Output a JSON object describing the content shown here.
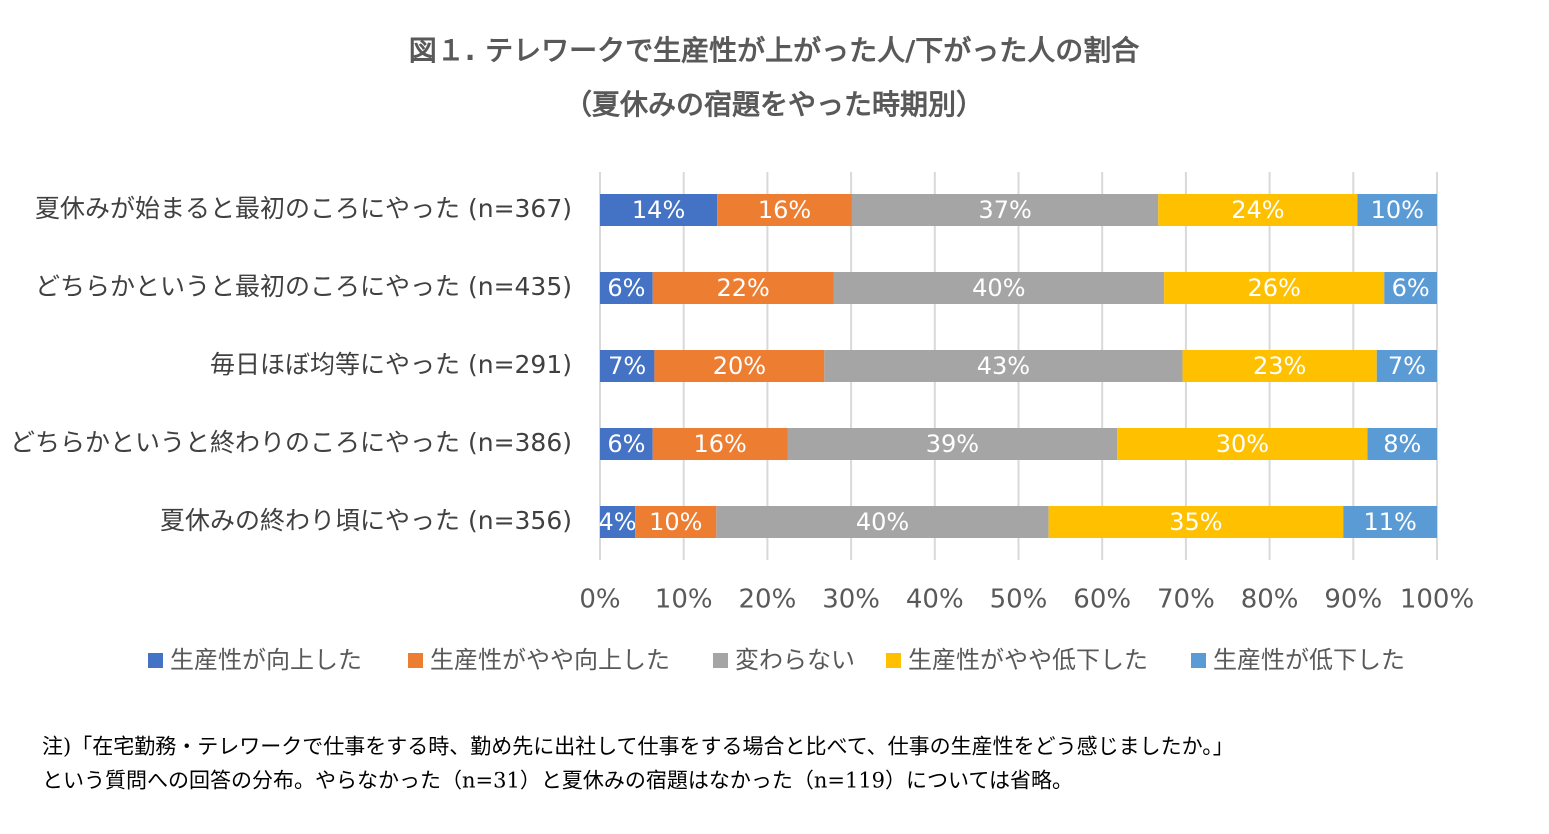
{
  "chart_data": {
    "type": "stacked-bar-horizontal",
    "title": "図１. テレワークで生産性が上がった人/下がった人の割合",
    "subtitle": "（夏休みの宿題をやった時期別）",
    "categories": [
      "夏休みが始まると最初のころにやった (n=367)",
      "どちらかというと最初のころにやった (n=435)",
      "毎日ほぼ均等にやった (n=291)",
      "どちらかというと終わりのころにやった (n=386)",
      "夏休みの終わり頃にやった (n=356)"
    ],
    "series": [
      {
        "name": "生産性が向上した",
        "color": "#4472c4",
        "values": [
          14.0,
          6.3,
          6.5,
          6.3,
          4.2
        ],
        "value_labels": [
          "14%",
          "6%",
          "7%",
          "6%",
          "4%"
        ]
      },
      {
        "name": "生産性がやや向上した",
        "color": "#ed7d31",
        "values": [
          16.1,
          21.6,
          20.3,
          16.1,
          9.7
        ],
        "value_labels": [
          "16%",
          "22%",
          "20%",
          "16%",
          "10%"
        ]
      },
      {
        "name": "変わらない",
        "color": "#a5a5a5",
        "values": [
          36.6,
          39.5,
          42.8,
          39.4,
          39.7
        ],
        "value_labels": [
          "37%",
          "40%",
          "43%",
          "39%",
          "40%"
        ]
      },
      {
        "name": "生産性がやや低下した",
        "color": "#ffc000",
        "values": [
          23.8,
          26.3,
          23.2,
          29.9,
          35.2
        ],
        "value_labels": [
          "24%",
          "26%",
          "23%",
          "30%",
          "35%"
        ]
      },
      {
        "name": "生産性が低下した",
        "color": "#5b9bd5",
        "values": [
          9.5,
          6.3,
          7.2,
          8.3,
          11.2
        ],
        "value_labels": [
          "10%",
          "6%",
          "7%",
          "8%",
          "11%"
        ]
      }
    ],
    "xlim": [
      0,
      100
    ],
    "xticks": [
      {
        "value": 0,
        "label": "0%"
      },
      {
        "value": 10,
        "label": "10%"
      },
      {
        "value": 20,
        "label": "20%"
      },
      {
        "value": 30,
        "label": "30%"
      },
      {
        "value": 40,
        "label": "40%"
      },
      {
        "value": 50,
        "label": "50%"
      },
      {
        "value": 60,
        "label": "60%"
      },
      {
        "value": 70,
        "label": "70%"
      },
      {
        "value": 80,
        "label": "80%"
      },
      {
        "value": 90,
        "label": "90%"
      },
      {
        "value": 100,
        "label": "100%"
      }
    ],
    "grid": true,
    "legend": "bottom",
    "notes": [
      "注)「在宅勤務・テレワークで仕事をする時、勤め先に出社して仕事をする場合と比べて、仕事の生産性をどう感じましたか。」",
      "という質問への回答の分布。やらなかった（n=31）と夏休みの宿題はなかった（n=119）については省略。"
    ]
  }
}
